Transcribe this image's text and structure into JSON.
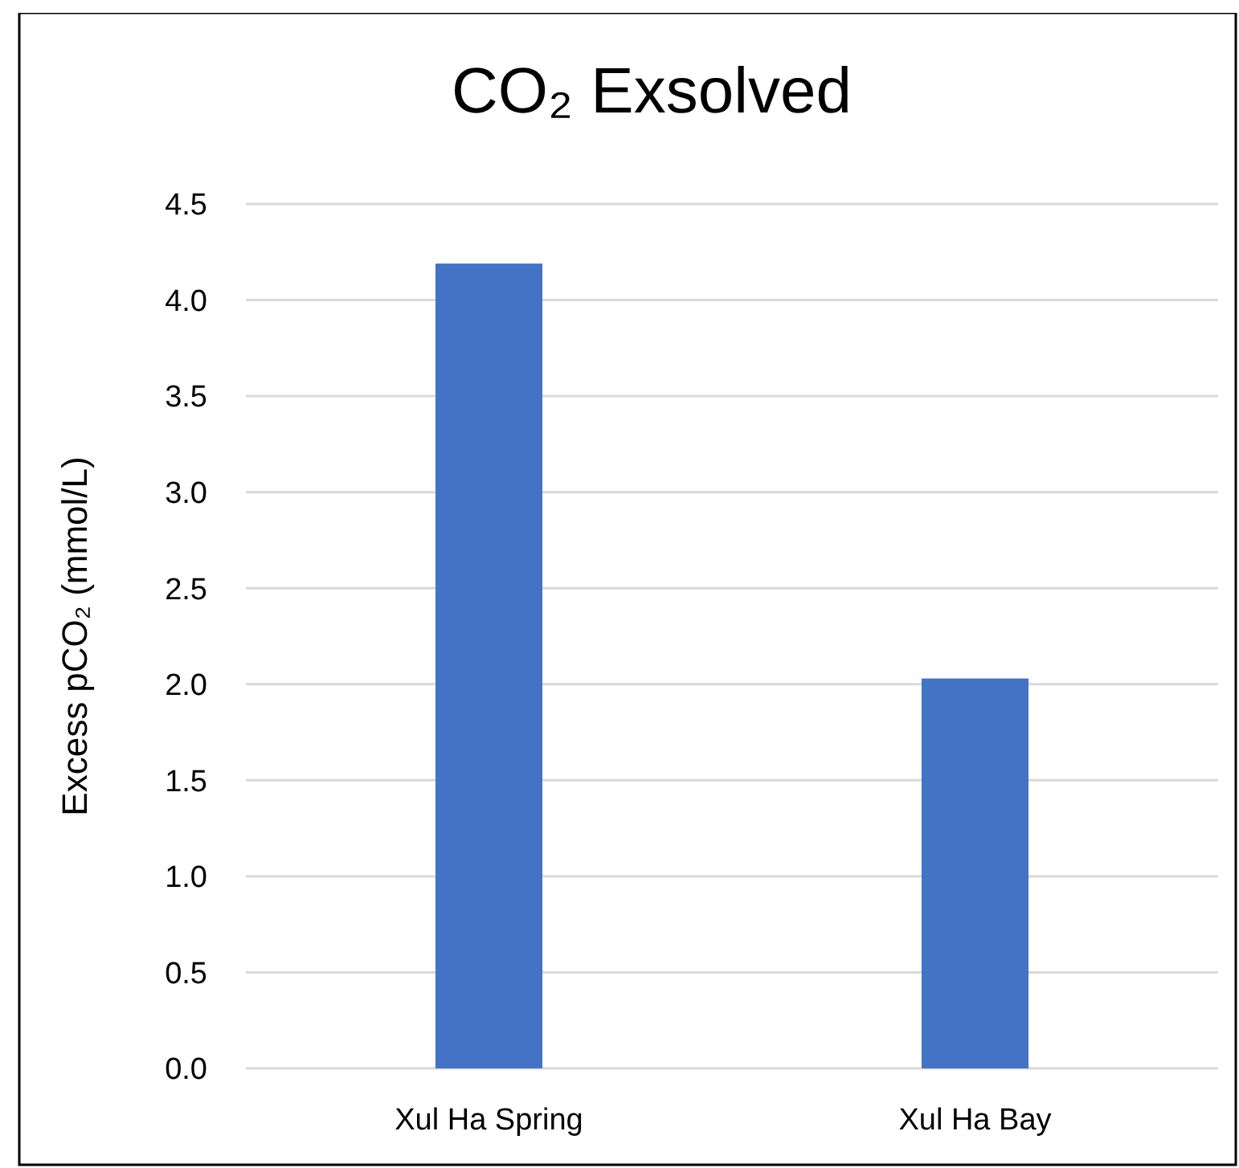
{
  "chart_data": {
    "type": "bar",
    "title": "CO₂ Exsolved",
    "ylabel": "Excess pCO₂ (mmol/L)",
    "categories": [
      "Xul Ha Spring",
      "Xul Ha Bay"
    ],
    "values": [
      4.19,
      2.03
    ],
    "color": "#4472c4",
    "ylim": [
      0,
      4.5
    ],
    "yticks": [
      {
        "value": 0,
        "label": "0.0"
      },
      {
        "value": 0.5,
        "label": "0.5"
      },
      {
        "value": 1,
        "label": "1.0"
      },
      {
        "value": 1.5,
        "label": "1.5"
      },
      {
        "value": 2,
        "label": "2.0"
      },
      {
        "value": 2.5,
        "label": "2.5"
      },
      {
        "value": 3,
        "label": "3.0"
      },
      {
        "value": 3.5,
        "label": "3.5"
      },
      {
        "value": 4,
        "label": "4.0"
      },
      {
        "value": 4.5,
        "label": "4.5"
      }
    ],
    "grid": "y"
  }
}
